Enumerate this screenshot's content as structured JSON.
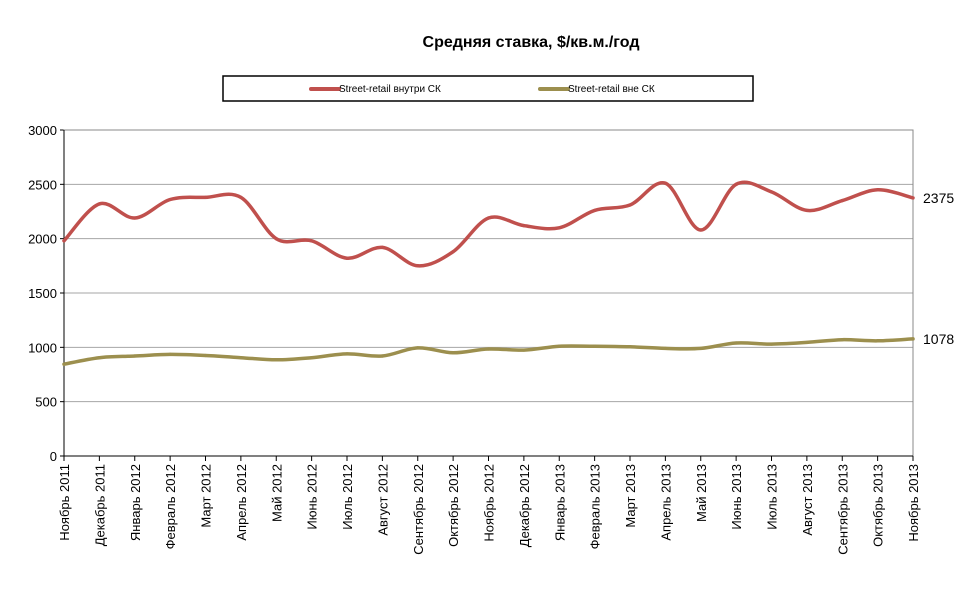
{
  "chart_data": {
    "type": "line",
    "title": "Средняя ставка, $/кв.м./год",
    "xlabel": "",
    "ylabel": "",
    "ylim": [
      0,
      3000
    ],
    "yticks": [
      0,
      500,
      1000,
      1500,
      2000,
      2500,
      3000
    ],
    "grid": true,
    "legend_position": "top",
    "categories": [
      "Ноябрь 2011",
      "Декабрь 2011",
      "Январь 2012",
      "Февраль 2012",
      "Март 2012",
      "Апрель 2012",
      "Май 2012",
      "Июнь 2012",
      "Июль 2012",
      "Август 2012",
      "Сентябрь 2012",
      "Октябрь 2012",
      "Ноябрь 2012",
      "Декабрь 2012",
      "Январь 2013",
      "Февраль 2013",
      "Март 2013",
      "Апрель 2013",
      "Май 2013",
      "Июнь 2013",
      "Июль 2013",
      "Август 2013",
      "Сентябрь 2013",
      "Октябрь 2013",
      "Ноябрь 2013"
    ],
    "series": [
      {
        "name": "Street-retail внутри СК",
        "color": "#c0504d",
        "values": [
          1980,
          2320,
          2190,
          2360,
          2380,
          2380,
          2000,
          1980,
          1820,
          1920,
          1750,
          1880,
          2190,
          2120,
          2100,
          2260,
          2310,
          2510,
          2080,
          2500,
          2430,
          2260,
          2350,
          2450,
          2375
        ],
        "end_label": "2375"
      },
      {
        "name": "Street-retail   вне СК",
        "color": "#9c8f4e",
        "values": [
          845,
          905,
          920,
          935,
          925,
          905,
          885,
          905,
          940,
          920,
          995,
          950,
          985,
          975,
          1010,
          1010,
          1005,
          990,
          990,
          1040,
          1030,
          1045,
          1070,
          1060,
          1078
        ],
        "end_label": "1078"
      }
    ]
  }
}
